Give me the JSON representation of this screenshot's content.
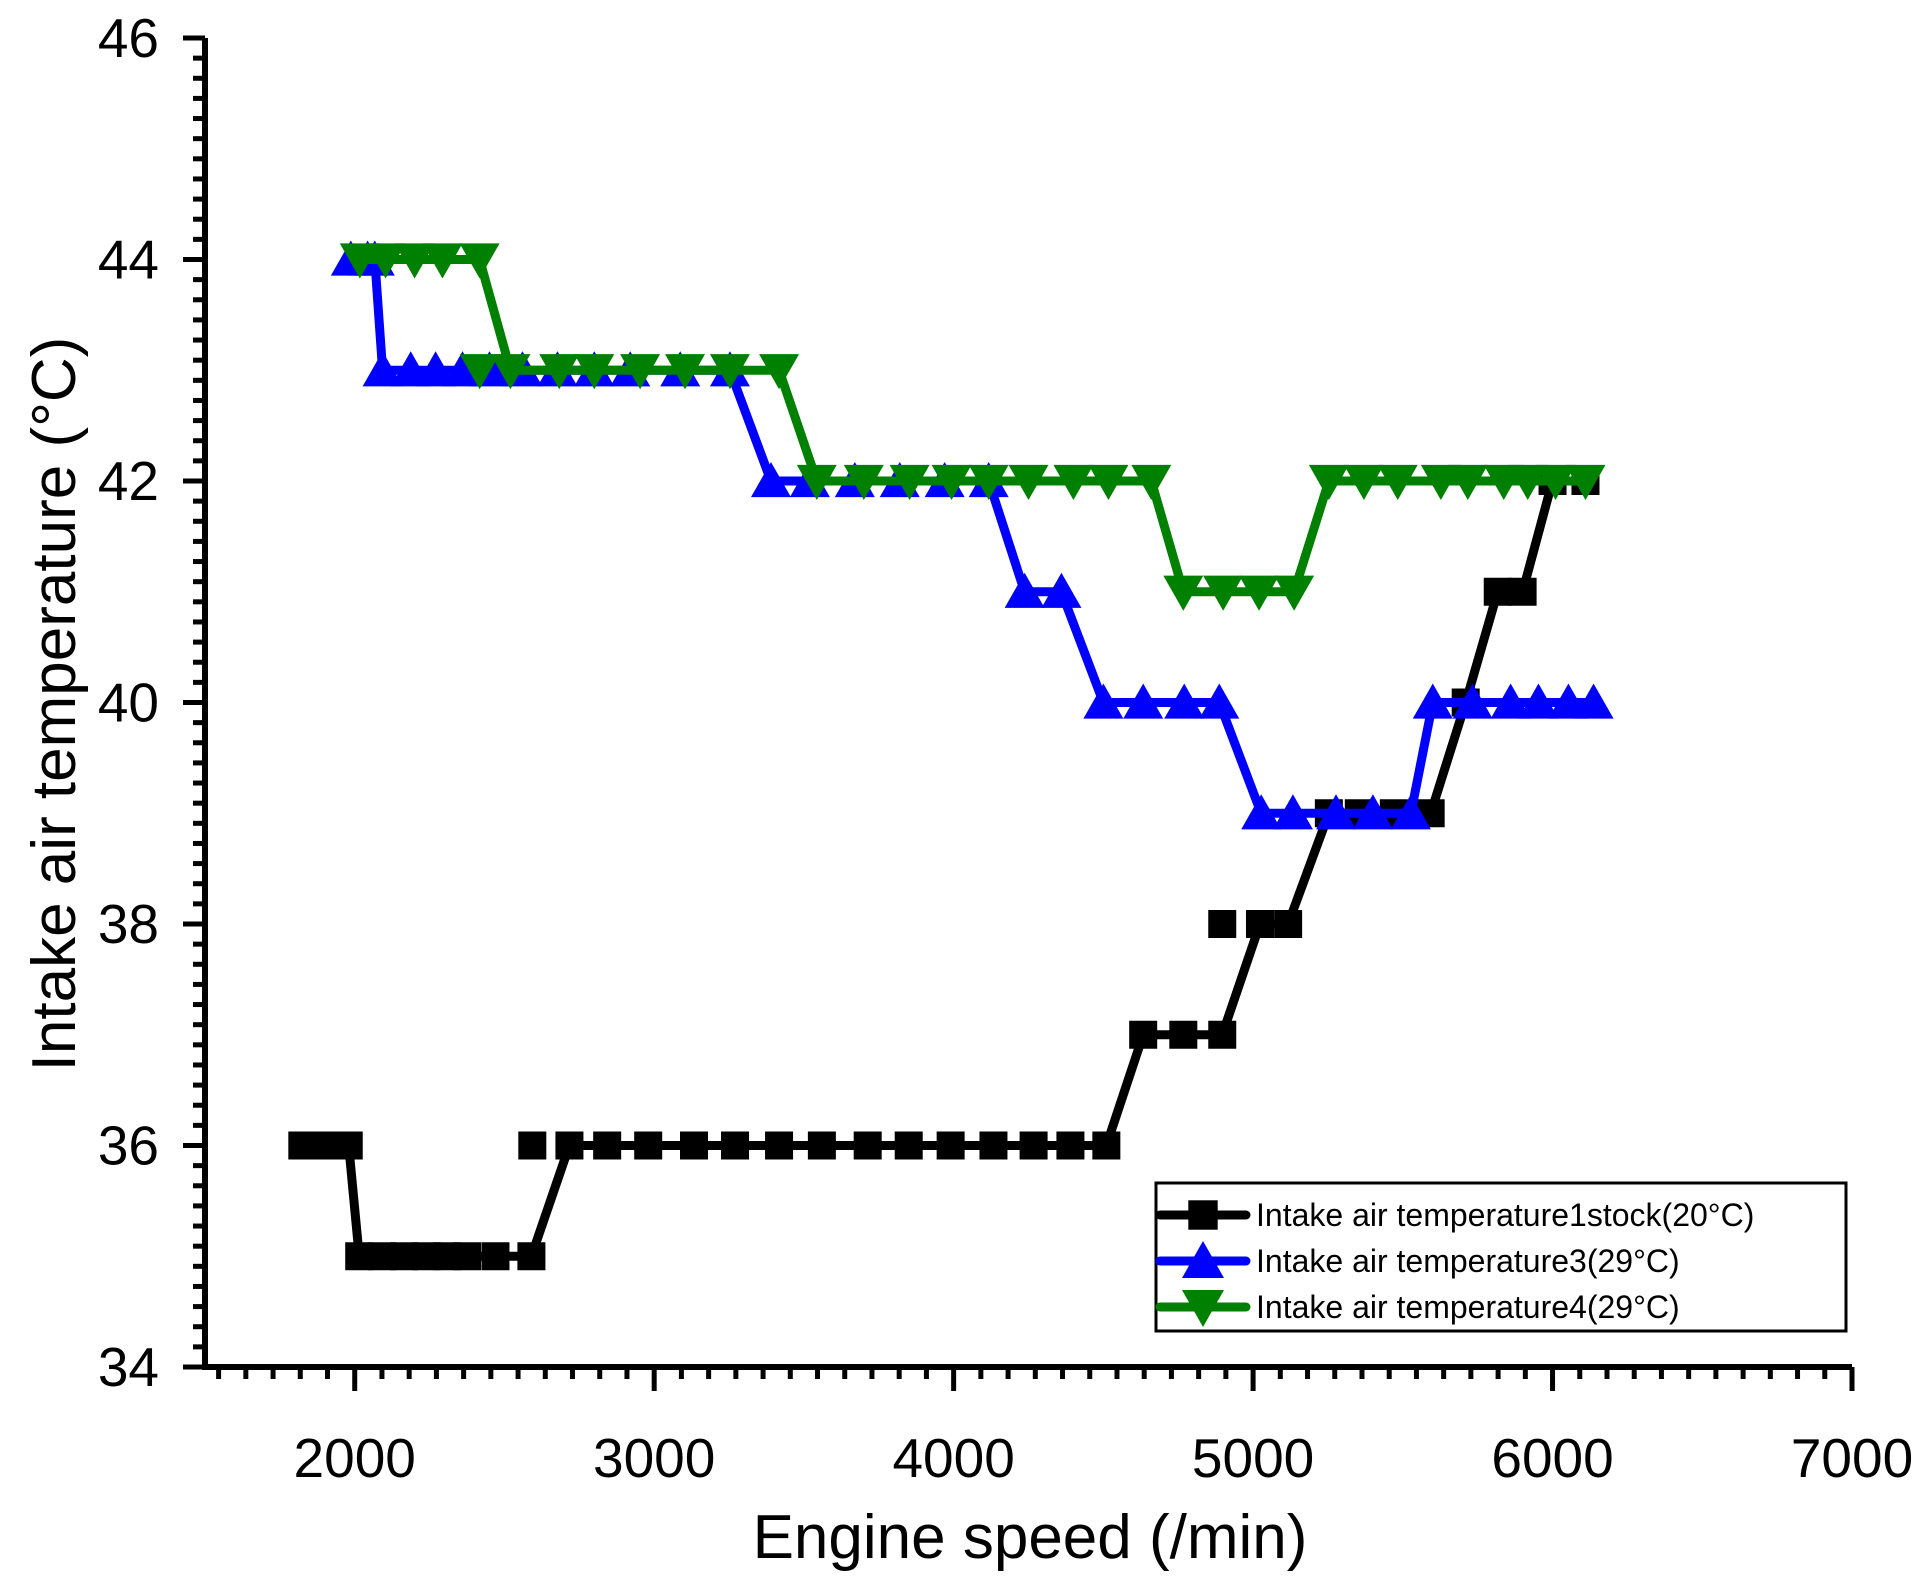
{
  "chart_data": {
    "type": "line",
    "title": "",
    "xlabel": "Engine speed (/min)",
    "ylabel": "Intake air temperature (°C)",
    "xlim": [
      1500,
      7000
    ],
    "ylim": [
      34,
      46
    ],
    "x_ticks": [
      2000,
      3000,
      4000,
      5000,
      6000,
      7000
    ],
    "x_tick_labels": [
      "2000",
      "3000",
      "4000",
      "5000",
      "6000",
      "7000"
    ],
    "y_ticks": [
      34,
      36,
      38,
      40,
      42,
      44,
      46
    ],
    "y_tick_labels": [
      "34",
      "36",
      "38",
      "40",
      "42",
      "44",
      "46"
    ],
    "minor_ticks_per_interval": 10,
    "grid": false,
    "legend_position": "bottom-right",
    "series": [
      {
        "name": "Intake air temperature1stock(20°C)",
        "color": "#000000",
        "marker": "square",
        "points": [
          [
            1825,
            36
          ],
          [
            1865,
            36
          ],
          [
            1905,
            36
          ],
          [
            1945,
            36
          ],
          [
            1980,
            36
          ],
          [
            2015,
            35
          ],
          [
            2090,
            35
          ],
          [
            2165,
            35
          ],
          [
            2240,
            35
          ],
          [
            2310,
            35
          ],
          [
            2375,
            35
          ],
          [
            2470,
            35
          ],
          [
            2590,
            35
          ],
          [
            2717,
            36
          ],
          [
            2843,
            36
          ],
          [
            2980,
            36
          ],
          [
            3133,
            36
          ],
          [
            3270,
            36
          ],
          [
            3417,
            36
          ],
          [
            3560,
            36
          ],
          [
            3713,
            36
          ],
          [
            3850,
            36
          ],
          [
            3990,
            36
          ],
          [
            4133,
            36
          ],
          [
            4267,
            36
          ],
          [
            4390,
            36
          ],
          [
            4510,
            36
          ],
          [
            4633,
            37
          ],
          [
            4767,
            37
          ],
          [
            4897,
            37
          ],
          [
            5023,
            38
          ],
          [
            5117,
            38
          ],
          [
            5253,
            39
          ],
          [
            5353,
            39
          ],
          [
            5470,
            39
          ],
          [
            5593,
            39
          ],
          [
            5710,
            40
          ],
          [
            5817,
            41
          ],
          [
            5900,
            41
          ],
          [
            6000,
            42
          ],
          [
            6110,
            42
          ]
        ],
        "unconnected_points": [
          [
            2593,
            36
          ],
          [
            4897,
            38
          ]
        ]
      },
      {
        "name": "Intake air temperature3(29°C)",
        "color": "#0000FF",
        "marker": "triangle-up",
        "points": [
          [
            1987,
            44
          ],
          [
            2043,
            44
          ],
          [
            2067,
            44
          ],
          [
            2093,
            43
          ],
          [
            2187,
            43
          ],
          [
            2270,
            43
          ],
          [
            2360,
            43
          ],
          [
            2450,
            43
          ],
          [
            2560,
            43
          ],
          [
            2677,
            43
          ],
          [
            2800,
            43
          ],
          [
            2920,
            43
          ],
          [
            3087,
            43
          ],
          [
            3253,
            43
          ],
          [
            3390,
            42
          ],
          [
            3520,
            42
          ],
          [
            3670,
            42
          ],
          [
            3820,
            42
          ],
          [
            3970,
            42
          ],
          [
            4117,
            42
          ],
          [
            4237,
            41
          ],
          [
            4360,
            41
          ],
          [
            4500,
            40
          ],
          [
            4633,
            40
          ],
          [
            4770,
            40
          ],
          [
            4887,
            40
          ],
          [
            5027,
            39
          ],
          [
            5133,
            39
          ],
          [
            5277,
            39
          ],
          [
            5400,
            39
          ],
          [
            5527,
            39
          ],
          [
            5600,
            40
          ],
          [
            5733,
            40
          ],
          [
            5860,
            40
          ],
          [
            5953,
            40
          ],
          [
            6053,
            40
          ],
          [
            6137,
            40
          ]
        ],
        "unconnected_points": []
      },
      {
        "name": "Intake air temperature4(29°C)",
        "color": "#008000",
        "marker": "triangle-down",
        "points": [
          [
            2017,
            44
          ],
          [
            2103,
            44
          ],
          [
            2200,
            44
          ],
          [
            2293,
            44
          ],
          [
            2417,
            44
          ],
          [
            2520,
            43
          ],
          [
            2683,
            43
          ],
          [
            2800,
            43
          ],
          [
            2953,
            43
          ],
          [
            3103,
            43
          ],
          [
            3253,
            43
          ],
          [
            3417,
            43
          ],
          [
            3543,
            42
          ],
          [
            3700,
            42
          ],
          [
            3853,
            42
          ],
          [
            3993,
            42
          ],
          [
            4117,
            42
          ],
          [
            4250,
            42
          ],
          [
            4400,
            42
          ],
          [
            4517,
            42
          ],
          [
            4660,
            42
          ],
          [
            4767,
            41
          ],
          [
            4900,
            41
          ],
          [
            5020,
            41
          ],
          [
            5137,
            41
          ],
          [
            5253,
            42
          ],
          [
            5370,
            42
          ],
          [
            5483,
            42
          ],
          [
            5627,
            42
          ],
          [
            5717,
            42
          ],
          [
            5837,
            42
          ],
          [
            5917,
            42
          ],
          [
            6010,
            42
          ],
          [
            6110,
            42
          ]
        ],
        "unconnected_points": [
          [
            2417,
            43
          ]
        ]
      }
    ]
  }
}
